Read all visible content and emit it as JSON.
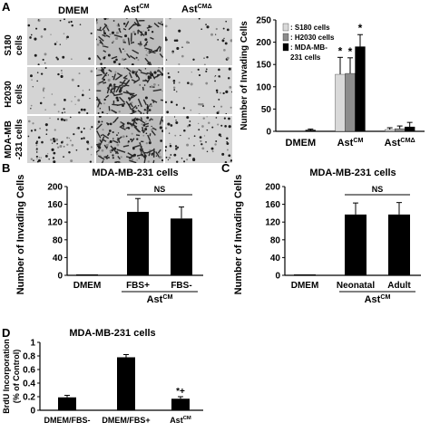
{
  "panels": {
    "A": {
      "letter": "A",
      "micrograph": {
        "col_headers": [
          "DMEM",
          "Ast",
          "Ast"
        ],
        "col_header_sups": [
          "",
          "CM",
          "CMΔ"
        ],
        "row_labels": [
          [
            "S180",
            "cells"
          ],
          [
            "H2030",
            "cells"
          ],
          [
            "MDA-MB",
            "-231 cells"
          ]
        ],
        "density": [
          [
            0.08,
            0.55,
            0.1
          ],
          [
            0.12,
            0.75,
            0.18
          ],
          [
            0.3,
            0.85,
            0.3
          ]
        ]
      },
      "chart": {
        "type": "bar",
        "ylabel": "Number of Invading Cells",
        "ylim": [
          0,
          250
        ],
        "yticks": [
          "0",
          "50",
          "100",
          "150",
          "200",
          "250"
        ],
        "groups": [
          {
            "label": "DMEM",
            "sup": ""
          },
          {
            "label": "Ast",
            "sup": "CM"
          },
          {
            "label": "Ast",
            "sup": "CMΔ"
          }
        ],
        "legend": [
          ": S180 cells",
          ": H2030 cells",
          ": MDA-MB-",
          "231 cells"
        ],
        "series": [
          {
            "color": "#d9d9d9",
            "values": [
              0,
              128,
              4
            ],
            "errors": [
              0,
              38,
              4
            ],
            "stars": [
              "",
              "*",
              ""
            ]
          },
          {
            "color": "#8c8c8c",
            "values": [
              0,
              130,
              6
            ],
            "errors": [
              0,
              35,
              6
            ],
            "stars": [
              "",
              "*",
              ""
            ]
          },
          {
            "color": "#000000",
            "values": [
              3,
              190,
              10
            ],
            "errors": [
              2,
              27,
              10
            ],
            "stars": [
              "",
              "*",
              ""
            ]
          }
        ]
      }
    },
    "B": {
      "letter": "B",
      "chart": {
        "type": "bar",
        "title": "MDA-MB-231 cells",
        "ylabel": "Number of Invading Cells",
        "ylim": [
          0,
          200
        ],
        "yticks": [
          "0",
          "40",
          "80",
          "120",
          "160",
          "200"
        ],
        "categories": [
          "DMEM",
          "FBS+",
          "FBS-"
        ],
        "values": [
          1,
          143,
          128
        ],
        "errors": [
          0,
          30,
          26
        ],
        "sig": "NS",
        "group_label": "Ast",
        "group_sup": "CM"
      }
    },
    "C": {
      "letter": "C",
      "chart": {
        "type": "bar",
        "title": "MDA-MB-231 cells",
        "ylabel": "Number of Invading Cells",
        "ylim": [
          0,
          200
        ],
        "yticks": [
          "0",
          "40",
          "80",
          "120",
          "160",
          "200"
        ],
        "categories": [
          "DMEM",
          "Neonatal",
          "Adult"
        ],
        "values": [
          1,
          137,
          137
        ],
        "errors": [
          0,
          26,
          27
        ],
        "sig": "NS",
        "group_label": "Ast",
        "group_sup": "CM"
      }
    },
    "D": {
      "letter": "D",
      "chart": {
        "type": "bar",
        "title": "MDA-MB-231 cells",
        "ylabel": [
          "BrdU Incorporation",
          "(% of Control)"
        ],
        "ylim": [
          0,
          1.0
        ],
        "yticks": [
          "0",
          "0.2",
          "0.4",
          "0.6",
          "0.8",
          "1"
        ],
        "categories": [
          "DMEM/FBS-",
          "DMEM/FBS+",
          "Ast"
        ],
        "category_sups": [
          "",
          "",
          "CM"
        ],
        "values": [
          0.19,
          0.78,
          0.17
        ],
        "errors": [
          0.03,
          0.04,
          0.03
        ],
        "marks": [
          "",
          "",
          "*+"
        ]
      }
    }
  }
}
